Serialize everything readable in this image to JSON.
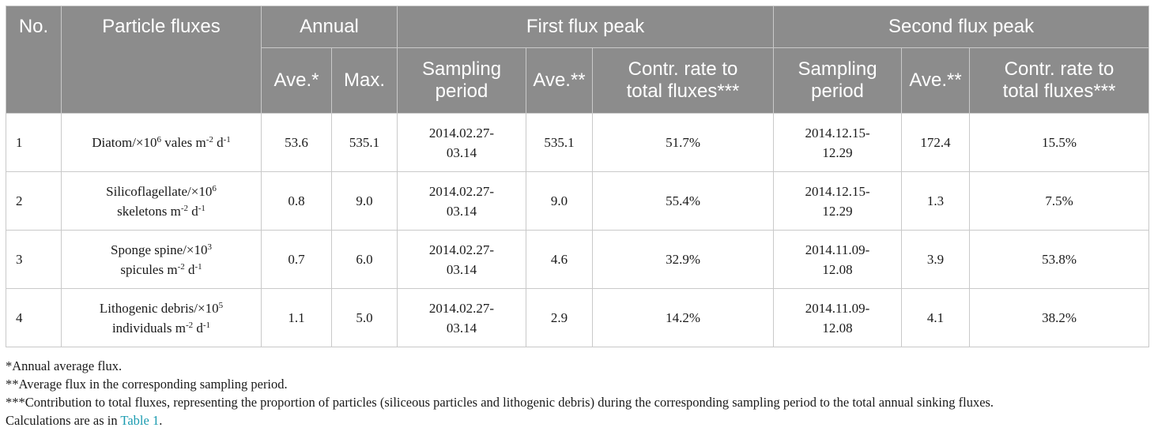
{
  "header": {
    "no": "No.",
    "particle_fluxes": "Particle fluxes",
    "annual": "Annual",
    "first_peak": "First flux peak",
    "second_peak": "Second flux peak",
    "ave_annual": "Ave.*",
    "max": "Max.",
    "sampling_period_1": "Sampling period",
    "ave_period_1": "Ave.**",
    "contr_rate_1": "Contr. rate to total fluxes***",
    "sampling_period_2": "Sampling period",
    "ave_period_2": "Ave.**",
    "contr_rate_2": "Contr. rate to total fluxes***"
  },
  "rows": [
    {
      "no": "1",
      "name_line1": "Diatom/×10",
      "name_exp": "6",
      "name_line2": " vales m",
      "name_exp2": "-2",
      "name_line3": " d",
      "name_exp3": "-1",
      "annual_ave": "53.6",
      "annual_max": "535.1",
      "p1_period_a": "2014.02.27-",
      "p1_period_b": "03.14",
      "p1_ave": "535.1",
      "p1_contr": "51.7%",
      "p2_period_a": "2014.12.15-",
      "p2_period_b": "12.29",
      "p2_ave": "172.4",
      "p2_contr": "15.5%"
    },
    {
      "no": "2",
      "name_line1": "Silicoflagellate/×10",
      "name_exp": "6",
      "name_line2": "skeletons m",
      "name_exp2": "-2",
      "name_line3": " d",
      "name_exp3": "-1",
      "annual_ave": "0.8",
      "annual_max": "9.0",
      "p1_period_a": "2014.02.27-",
      "p1_period_b": "03.14",
      "p1_ave": "9.0",
      "p1_contr": "55.4%",
      "p2_period_a": "2014.12.15-",
      "p2_period_b": "12.29",
      "p2_ave": "1.3",
      "p2_contr": "7.5%"
    },
    {
      "no": "3",
      "name_line1": "Sponge spine/×10",
      "name_exp": "3",
      "name_line2": "spicules m",
      "name_exp2": "-2",
      "name_line3": " d",
      "name_exp3": "-1",
      "annual_ave": "0.7",
      "annual_max": "6.0",
      "p1_period_a": "2014.02.27-",
      "p1_period_b": "03.14",
      "p1_ave": "4.6",
      "p1_contr": "32.9%",
      "p2_period_a": "2014.11.09-",
      "p2_period_b": "12.08",
      "p2_ave": "3.9",
      "p2_contr": "53.8%"
    },
    {
      "no": "4",
      "name_line1": "Lithogenic debris/×10",
      "name_exp": "5",
      "name_line2": "individuals m",
      "name_exp2": "-2",
      "name_line3": " d",
      "name_exp3": "-1",
      "annual_ave": "1.1",
      "annual_max": "5.0",
      "p1_period_a": "2014.02.27-",
      "p1_period_b": "03.14",
      "p1_ave": "2.9",
      "p1_contr": "14.2%",
      "p2_period_a": "2014.11.09-",
      "p2_period_b": "12.08",
      "p2_ave": "4.1",
      "p2_contr": "38.2%"
    }
  ],
  "notes": {
    "note1": "*Annual average flux.",
    "note2": "**Average flux in the corresponding sampling period.",
    "note3": "***Contribution to total fluxes, representing the proportion of particles (siliceous particles and lithogenic debris) during the corresponding sampling period to the total annual sinking fluxes.",
    "note4_prefix": "Calculations are as in ",
    "note4_link": "Table 1",
    "note4_suffix": "."
  },
  "colors": {
    "header_bg": "#8c8c8c",
    "header_text": "#ffffff",
    "link": "#1a9bb0"
  }
}
